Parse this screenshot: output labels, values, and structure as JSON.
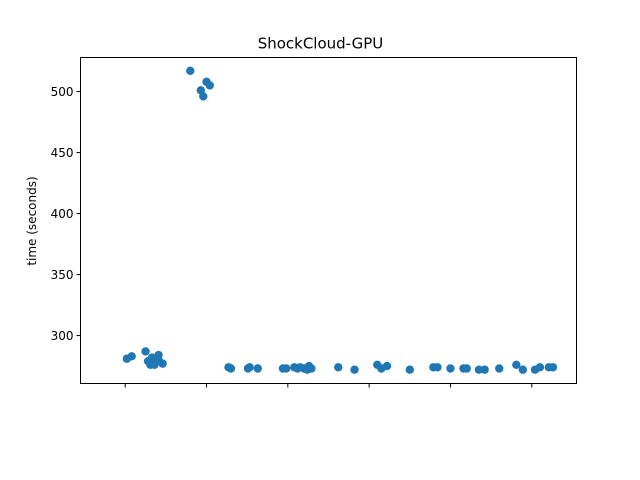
{
  "chart_data": {
    "type": "scatter",
    "title": "ShockCloud-GPU",
    "xlabel": "",
    "ylabel": "time (seconds)",
    "xlim": [
      0.45,
      6.55
    ],
    "ylim": [
      260.7,
      527.9
    ],
    "yticks": [
      300,
      350,
      400,
      450,
      500
    ],
    "xticks": [
      1,
      2,
      3,
      4,
      5,
      6
    ],
    "grid": false,
    "color": "#1f77b4",
    "points": [
      [
        1.02,
        281
      ],
      [
        1.08,
        283
      ],
      [
        1.25,
        287
      ],
      [
        1.28,
        279
      ],
      [
        1.31,
        276
      ],
      [
        1.33,
        282
      ],
      [
        1.36,
        276
      ],
      [
        1.38,
        280
      ],
      [
        1.41,
        284
      ],
      [
        1.41,
        280
      ],
      [
        1.46,
        277
      ],
      [
        1.8,
        517
      ],
      [
        1.93,
        501
      ],
      [
        1.96,
        496
      ],
      [
        2.0,
        508
      ],
      [
        2.04,
        505
      ],
      [
        2.27,
        274
      ],
      [
        2.3,
        273
      ],
      [
        2.51,
        273
      ],
      [
        2.53,
        274
      ],
      [
        2.63,
        273
      ],
      [
        2.94,
        273
      ],
      [
        2.98,
        273
      ],
      [
        3.08,
        274
      ],
      [
        3.12,
        273
      ],
      [
        3.15,
        274
      ],
      [
        3.2,
        273
      ],
      [
        3.24,
        272
      ],
      [
        3.26,
        275
      ],
      [
        3.29,
        273
      ],
      [
        3.62,
        274
      ],
      [
        3.82,
        272
      ],
      [
        4.1,
        276
      ],
      [
        4.15,
        273
      ],
      [
        4.22,
        275
      ],
      [
        4.5,
        272
      ],
      [
        4.79,
        274
      ],
      [
        4.84,
        274
      ],
      [
        5.0,
        273
      ],
      [
        5.16,
        273
      ],
      [
        5.2,
        273
      ],
      [
        5.35,
        272
      ],
      [
        5.42,
        272
      ],
      [
        5.6,
        273
      ],
      [
        5.81,
        276
      ],
      [
        5.89,
        272
      ],
      [
        6.04,
        272
      ],
      [
        6.1,
        274
      ],
      [
        6.21,
        274
      ],
      [
        6.26,
        274
      ]
    ]
  }
}
